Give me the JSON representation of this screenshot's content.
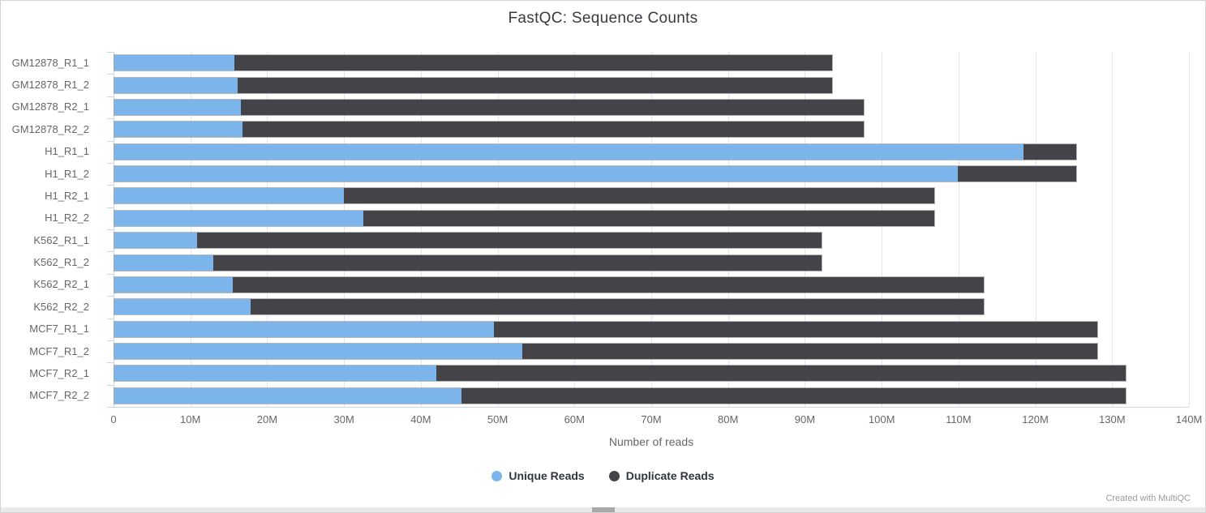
{
  "chart": {
    "title": "FastQC: Sequence Counts",
    "xlabel": "Number of reads"
  },
  "chart_data": {
    "type": "bar",
    "orientation": "horizontal",
    "stacked": true,
    "title": "FastQC: Sequence Counts",
    "xlabel": "Number of reads",
    "ylabel": "",
    "categories": [
      "GM12878_R1_1",
      "GM12878_R1_2",
      "GM12878_R2_1",
      "GM12878_R2_2",
      "H1_R1_1",
      "H1_R1_2",
      "H1_R2_1",
      "H1_R2_2",
      "K562_R1_1",
      "K562_R1_2",
      "K562_R2_1",
      "K562_R2_2",
      "MCF7_R1_1",
      "MCF7_R1_2",
      "MCF7_R2_1",
      "MCF7_R2_2"
    ],
    "series": [
      {
        "name": "Unique Reads",
        "color": "#7cb5ec",
        "values_millions": [
          15.7,
          16.1,
          16.5,
          16.7,
          118.6,
          110.0,
          29.9,
          32.5,
          10.8,
          12.9,
          15.4,
          17.8,
          49.5,
          53.2,
          42.0,
          45.3
        ]
      },
      {
        "name": "Duplicate Reads",
        "color": "#434348",
        "values_millions": [
          78.0,
          77.6,
          81.3,
          81.1,
          6.8,
          15.4,
          77.1,
          74.5,
          81.5,
          79.4,
          98.0,
          95.6,
          78.7,
          75.0,
          89.9,
          86.6
        ]
      }
    ],
    "xlim_millions": [
      0,
      140
    ],
    "xtick_labels": [
      "0",
      "10M",
      "20M",
      "30M",
      "40M",
      "50M",
      "60M",
      "70M",
      "80M",
      "90M",
      "100M",
      "110M",
      "120M",
      "130M",
      "140M"
    ],
    "grid": "vertical-only",
    "legend_position": "bottom",
    "colors": {
      "gridline": "#e6e6e6",
      "axis_line": "#ccd6eb",
      "tick_label": "#666666",
      "title_text": "#363b42"
    }
  },
  "legend": {
    "items": [
      {
        "label": "Unique Reads",
        "color": "#7cb5ec"
      },
      {
        "label": "Duplicate Reads",
        "color": "#434348"
      }
    ]
  },
  "footer": {
    "credit": "Created with MultiQC"
  }
}
